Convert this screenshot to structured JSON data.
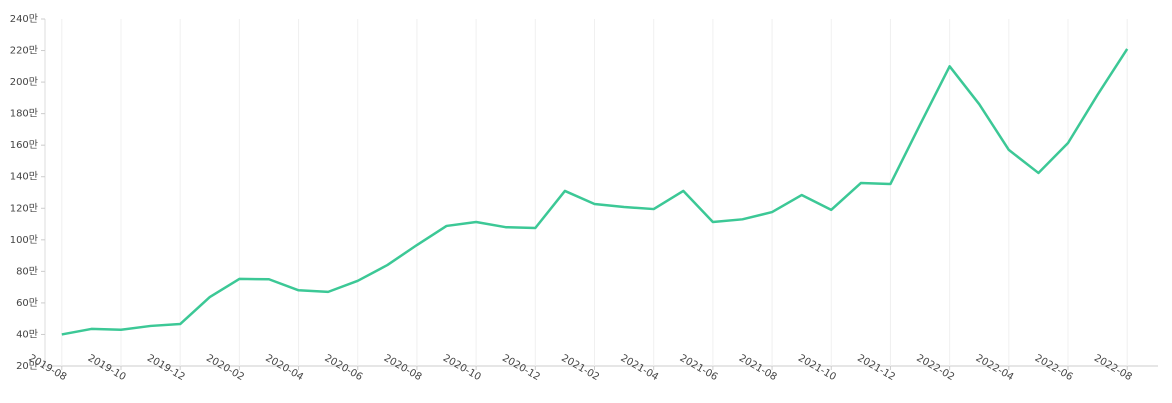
{
  "chart_data": {
    "type": "line",
    "categories": [
      "2019-08",
      null,
      "2019-10",
      null,
      "2019-12",
      null,
      "2020-02",
      null,
      "2020-04",
      null,
      "2020-06",
      null,
      "2020-08",
      null,
      "2020-10",
      null,
      "2020-12",
      null,
      "2021-02",
      null,
      "2021-04",
      null,
      "2021-06",
      null,
      "2021-08",
      null,
      "2021-10",
      null,
      "2021-12",
      null,
      "2022-02",
      null,
      "2022-04",
      null,
      "2022-06",
      null,
      "2022-08"
    ],
    "values": [
      40,
      43.5,
      43,
      45.4,
      46.6,
      63.7,
      75.2,
      75,
      68,
      67,
      74,
      84,
      96.7,
      108.8,
      111.3,
      108,
      107.5,
      131,
      122.7,
      120.8,
      119.5,
      131,
      111.3,
      113,
      117.6,
      128.4,
      119,
      136,
      135.4,
      173,
      210,
      186,
      157,
      142.4,
      161.4,
      192,
      221
    ],
    "color": "#3cc896",
    "ylim": [
      20,
      240
    ],
    "yticks": [
      {
        "value": 20,
        "label": "20만"
      },
      {
        "value": 40,
        "label": "40만"
      },
      {
        "value": 60,
        "label": "60만"
      },
      {
        "value": 80,
        "label": "80만"
      },
      {
        "value": 100,
        "label": "100만"
      },
      {
        "value": 120,
        "label": "120만"
      },
      {
        "value": 140,
        "label": "140만"
      },
      {
        "value": 160,
        "label": "160만"
      },
      {
        "value": 180,
        "label": "180만"
      },
      {
        "value": 200,
        "label": "200만"
      },
      {
        "value": 220,
        "label": "220만"
      },
      {
        "value": 240,
        "label": "240만"
      }
    ],
    "x_grid": true
  }
}
